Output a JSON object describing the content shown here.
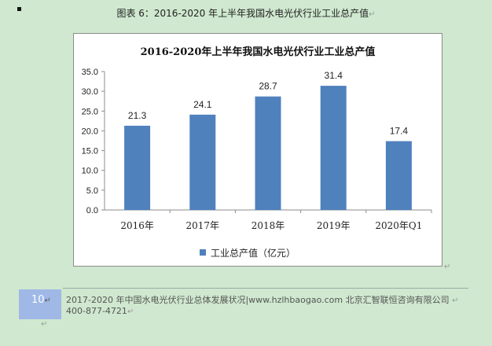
{
  "caption": "图表 6：2016-2020 年上半年我国水电光伏行业工业总产值",
  "chart_data": {
    "type": "bar",
    "title": "2016-2020年上半年我国水电光伏行业工业总产值",
    "categories": [
      "2016年",
      "2017年",
      "2018年",
      "2019年",
      "2020年Q1"
    ],
    "series": [
      {
        "name": "工业总产值（亿元）",
        "values": [
          21.3,
          24.1,
          28.7,
          31.4,
          17.4
        ],
        "color": "#4f81bd"
      }
    ],
    "value_labels": [
      "21.3",
      "24.1",
      "28.7",
      "31.4",
      "17.4"
    ],
    "ylim": [
      0,
      35
    ],
    "yticks": [
      "0.0",
      "5.0",
      "10.0",
      "15.0",
      "20.0",
      "25.0",
      "30.0",
      "35.0"
    ],
    "grid": false,
    "legend": "bottom"
  },
  "footer": {
    "page_number": "10",
    "line1": "2017-2020 年中国水电光伏行业总体发展状况|www.hzlhbaogao.com 北京汇智联恒咨询有限公司",
    "line2": "400-877-4721"
  },
  "paragraph_mark": "↵"
}
